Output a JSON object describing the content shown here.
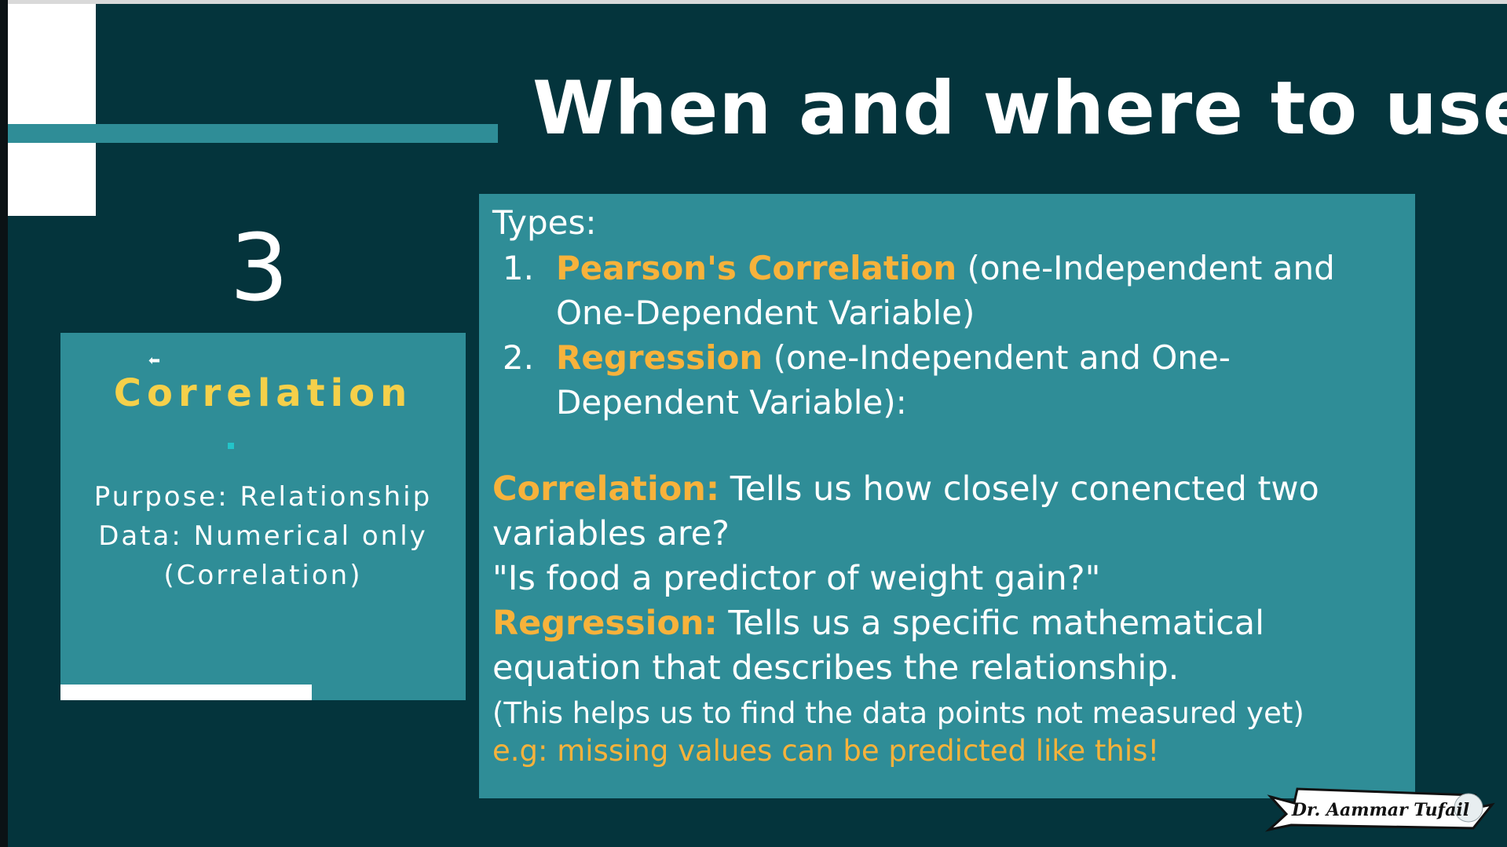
{
  "slide": {
    "title": "When and where to use?",
    "number": "3"
  },
  "card": {
    "cursor_glyph": "⬅",
    "title": "Correlation",
    "lines": [
      "Purpose: Relationship",
      "Data: Numerical only",
      "(Correlation)"
    ]
  },
  "panel": {
    "types_heading": "Types:",
    "types": [
      {
        "num": "1.",
        "name": "Pearson's Correlation",
        "desc": " (one-Independent and One-Dependent Variable)"
      },
      {
        "num": "2.",
        "name": "Regression",
        "desc": " (one-Independent and One-Dependent Variable):"
      }
    ],
    "correlation": {
      "label": "Correlation:",
      "text": " Tells us how closely conencted two variables are?"
    },
    "question": "\"Is food a predictor of weight gain?\"",
    "regression": {
      "label": "Regression:",
      "text": " Tells us a specific mathematical equation that describes the relationship."
    },
    "note": "(This helps us to find the data points not measured yet)",
    "example": "e.g: missing values can be predicted like this!"
  },
  "signature": {
    "label": "Dr. Aammar Tufail"
  },
  "colors": {
    "background": "#04343c",
    "teal": "#2f8d97",
    "orange": "#f7b23b",
    "yellow": "#f5d04a"
  }
}
